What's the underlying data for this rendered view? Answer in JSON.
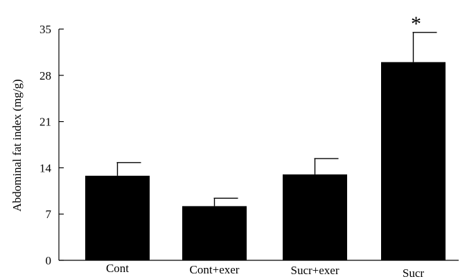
{
  "chart_data": {
    "type": "bar",
    "title": "",
    "xlabel": "",
    "ylabel": "Abdominal fat index (mg/g)",
    "ylim": [
      0,
      35
    ],
    "yticks": [
      0,
      7,
      14,
      21,
      28,
      35
    ],
    "categories": [
      "Cont",
      "Cont+exer",
      "Sucr+exer",
      "Sucr"
    ],
    "values": [
      12.8,
      8.2,
      13.0,
      30.0
    ],
    "errors": [
      2.0,
      1.2,
      2.4,
      4.5
    ],
    "annotations": [
      {
        "category": "Sucr",
        "text": "*"
      }
    ],
    "bar_color": "#000000",
    "grid": false,
    "legend": "none"
  }
}
